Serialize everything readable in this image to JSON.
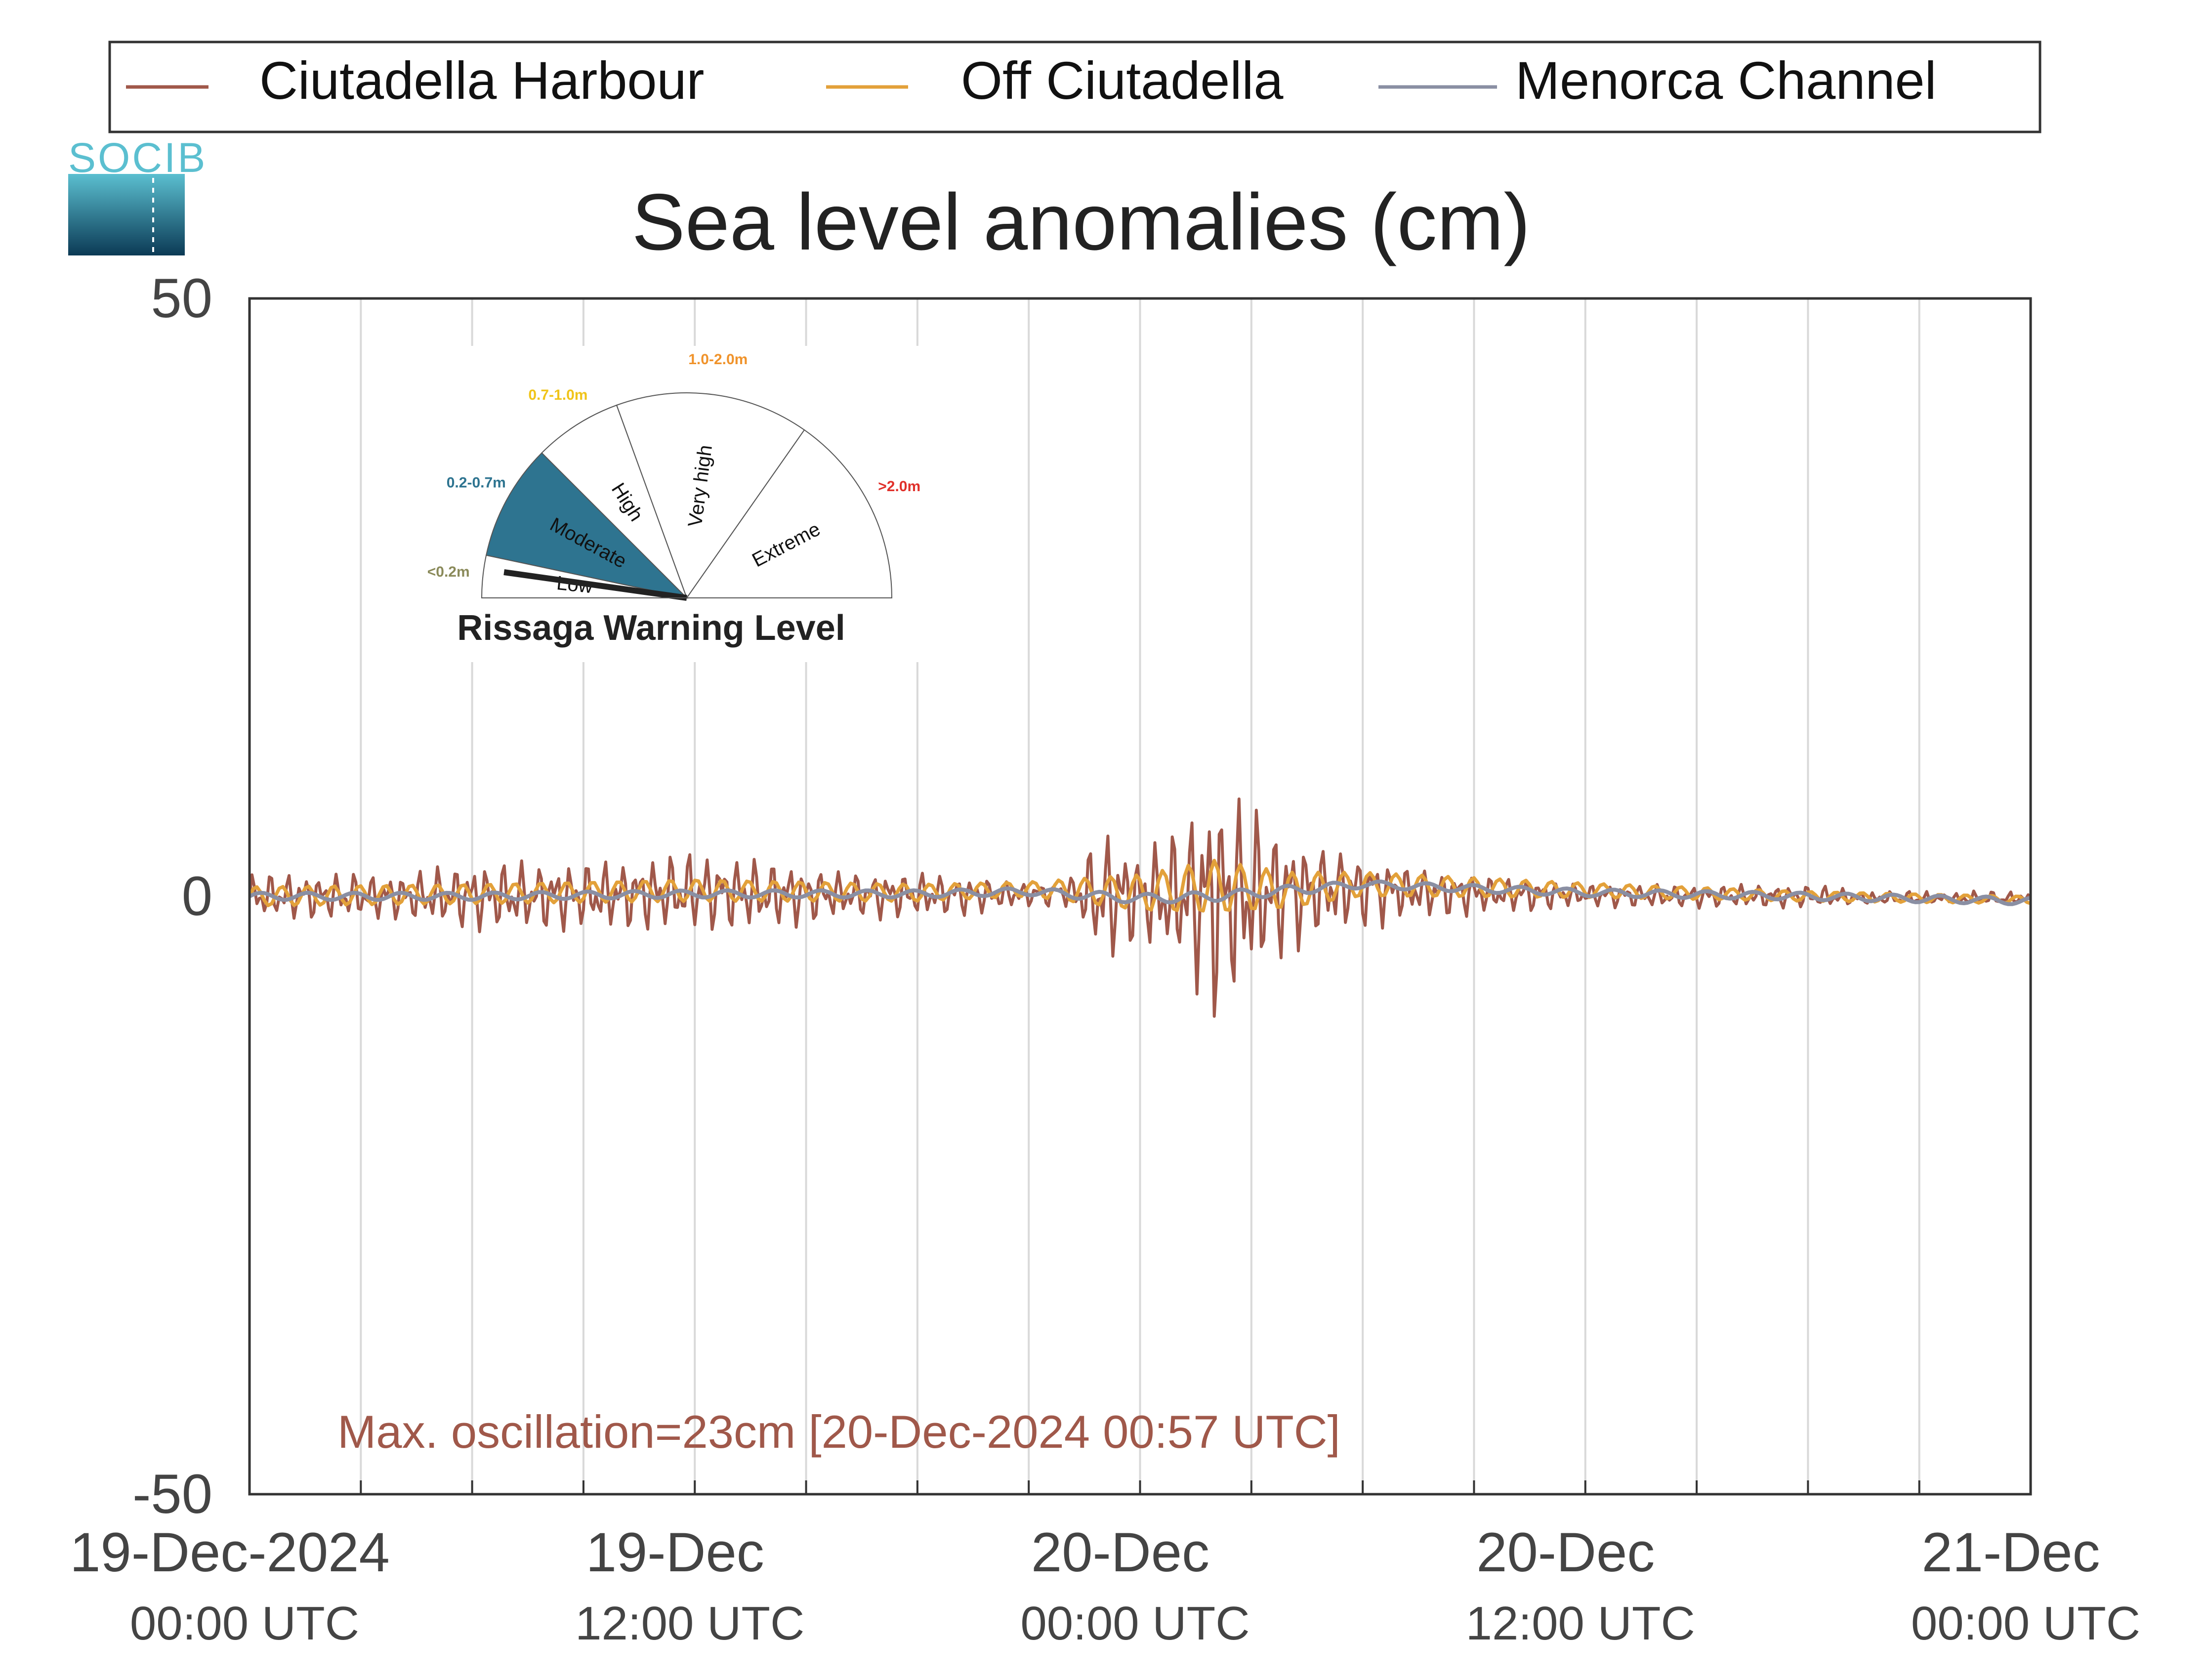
{
  "legend": {
    "items": [
      {
        "label": "Ciutadella Harbour",
        "color": "#a0584a"
      },
      {
        "label": "Off Ciutadella",
        "color": "#e3a13a"
      },
      {
        "label": "Menorca Channel",
        "color": "#8a8fa3"
      }
    ]
  },
  "logo": {
    "text": "SOCIB",
    "colors": {
      "top": "#5bbfd0",
      "bottom": "#0b3a55"
    }
  },
  "annotation": {
    "text": "Max. oscillation=23cm [20-Dec-2024 00:57 UTC]",
    "color": "#a0584a"
  },
  "warning_gauge": {
    "title": "Rissaga Warning Level",
    "current_level": "Moderate",
    "sectors": [
      {
        "name": "Low",
        "range": "<0.2m",
        "color": "#8a8a5a",
        "active": false
      },
      {
        "name": "Moderate",
        "range": "0.2-0.7m",
        "color": "#2e7490",
        "active": true
      },
      {
        "name": "High",
        "range": "0.7-1.0m",
        "color": "#f0c419",
        "active": false
      },
      {
        "name": "Very high",
        "range": "1.0-2.0m",
        "color": "#f0932b",
        "active": false
      },
      {
        "name": "Extreme",
        "range": ">2.0m",
        "color": "#e0302a",
        "active": false
      }
    ]
  },
  "chart_data": {
    "type": "line",
    "title": "Sea level anomalies (cm)",
    "xlabel": "",
    "ylabel": "",
    "ylim": [
      -50,
      50
    ],
    "yticks": [
      "50",
      "0",
      "-50"
    ],
    "xlim": [
      "2024-12-19T00:00",
      "2024-12-21T00:00"
    ],
    "xticks": [
      {
        "date": "19-Dec-2024",
        "time": "00:00 UTC"
      },
      {
        "date": "19-Dec",
        "time": "12:00 UTC"
      },
      {
        "date": "20-Dec",
        "time": "00:00 UTC"
      },
      {
        "date": "20-Dec",
        "time": "12:00 UTC"
      },
      {
        "date": "21-Dec",
        "time": "00:00 UTC"
      }
    ],
    "grid": "vertical every 3 hours",
    "legend_position": "top",
    "series": [
      {
        "name": "Ciutadella Harbour",
        "color": "#a0584a",
        "style": "high-frequency oscillation; values = oscillation envelope (cm)",
        "envelope": {
          "x": [
            "2024-12-19T00:00",
            "2024-12-19T02:00",
            "2024-12-19T04:00",
            "2024-12-19T06:00",
            "2024-12-19T08:00",
            "2024-12-19T10:00",
            "2024-12-19T12:00",
            "2024-12-19T14:00",
            "2024-12-19T16:00",
            "2024-12-19T18:00",
            "2024-12-19T20:00",
            "2024-12-19T21:00",
            "2024-12-19T22:00",
            "2024-12-19T23:00",
            "2024-12-20T00:00",
            "2024-12-20T01:00",
            "2024-12-20T02:00",
            "2024-12-20T03:00",
            "2024-12-20T04:00",
            "2024-12-20T05:00",
            "2024-12-20T06:00",
            "2024-12-20T08:00",
            "2024-12-20T10:00",
            "2024-12-20T12:00",
            "2024-12-20T14:00",
            "2024-12-20T16:00",
            "2024-12-20T18:00",
            "2024-12-20T20:00",
            "2024-12-20T22:00",
            "2024-12-21T00:00"
          ],
          "upper": [
            2,
            2,
            2,
            3,
            3,
            3,
            4,
            3,
            2,
            2,
            1.5,
            1,
            1,
            6,
            4,
            6,
            10,
            8,
            5,
            4,
            3,
            2,
            1.5,
            1,
            1,
            1,
            1,
            0.5,
            0.5,
            0.5
          ],
          "lower": [
            -2,
            -2,
            -2,
            -3,
            -3,
            -3,
            -3,
            -3,
            -2,
            -2,
            -1.5,
            -1,
            -1,
            -6,
            -4,
            -6,
            -11,
            -8,
            -5,
            -4,
            -3,
            -2,
            -1.5,
            -1,
            -1,
            -1,
            -1,
            -0.5,
            -0.5,
            -0.5
          ],
          "mean": [
            0,
            0,
            0,
            0,
            0,
            0.2,
            0.3,
            0.3,
            0.2,
            0.2,
            0.2,
            0.3,
            0.5,
            0,
            0,
            0,
            0,
            0.2,
            0.5,
            1,
            1,
            0.5,
            0.3,
            0.2,
            0,
            0,
            0,
            -0.3,
            -0.3,
            -0.3
          ]
        }
      },
      {
        "name": "Off Ciutadella",
        "color": "#e3a13a",
        "x": [
          "2024-12-19T00:00",
          "2024-12-19T06:00",
          "2024-12-19T12:00",
          "2024-12-19T18:00",
          "2024-12-19T21:00",
          "2024-12-20T00:00",
          "2024-12-20T02:00",
          "2024-12-20T04:00",
          "2024-12-20T06:00",
          "2024-12-20T12:00",
          "2024-12-20T18:00",
          "2024-12-21T00:00"
        ],
        "values": [
          0,
          0.2,
          0.5,
          0.3,
          0.6,
          0.3,
          0.8,
          0.5,
          1,
          0.5,
          0,
          -0.3
        ],
        "amplitude": [
          0.8,
          0.8,
          0.9,
          0.7,
          0.6,
          1.5,
          2.2,
          1.5,
          1,
          0.6,
          0.4,
          0.3
        ]
      },
      {
        "name": "Menorca Channel",
        "color": "#8a8fa3",
        "x": [
          "2024-12-19T00:00",
          "2024-12-19T06:00",
          "2024-12-19T12:00",
          "2024-12-19T18:00",
          "2024-12-19T21:00",
          "2024-12-20T00:00",
          "2024-12-20T02:00",
          "2024-12-20T04:00",
          "2024-12-20T06:00",
          "2024-12-20T12:00",
          "2024-12-20T18:00",
          "2024-12-21T00:00"
        ],
        "values": [
          0,
          0,
          0.2,
          0.2,
          0.4,
          -0.2,
          0,
          0.5,
          1,
          0.3,
          0,
          -0.4
        ],
        "amplitude": [
          0.3,
          0.3,
          0.3,
          0.3,
          0.3,
          0.4,
          0.4,
          0.4,
          0.3,
          0.3,
          0.3,
          0.3
        ]
      }
    ]
  }
}
